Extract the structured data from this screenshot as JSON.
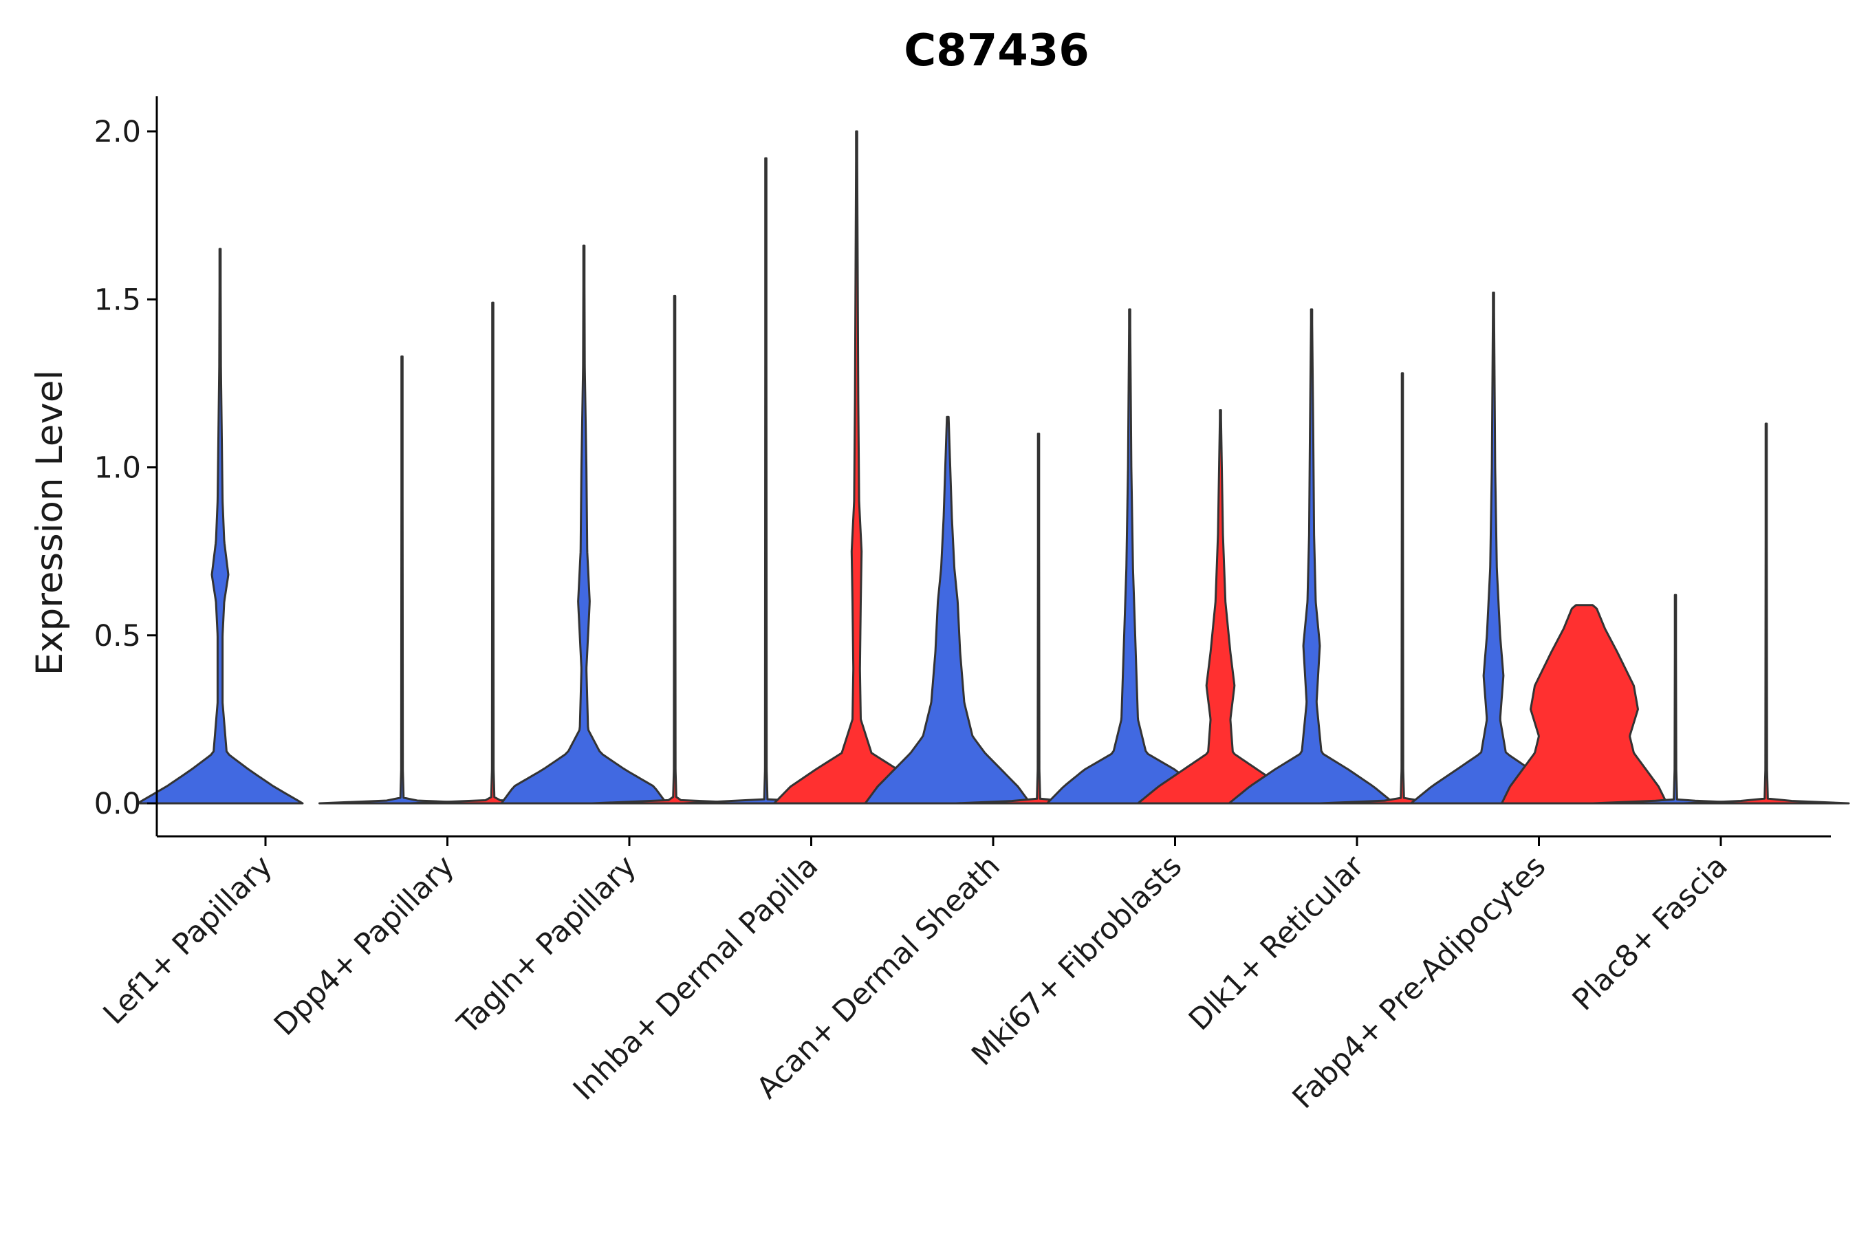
{
  "chart_data": {
    "type": "violin",
    "title": "C87436",
    "xlabel": "",
    "ylabel": "Expression Level",
    "ylim": [
      -0.1,
      2.1
    ],
    "yticks": [
      "0.0",
      "0.5",
      "1.0",
      "1.5",
      "2.0"
    ],
    "ytick_values": [
      0.0,
      0.5,
      1.0,
      1.5,
      2.0
    ],
    "categories": [
      "Lef1+ Papillary",
      "Dpp4+ Papillary",
      "Tagln+ Papillary",
      "Inhba+ Dermal Papilla",
      "Acan+ Dermal Sheath",
      "Mki67+ Fibroblasts",
      "Dlk1+ Reticular",
      "Fabp4+ Pre-Adipocytes",
      "Plac8+ Fascia"
    ],
    "colors": {
      "group1": "#4169E1",
      "group2": "#FF3030",
      "outline": "#333333",
      "axis": "#000000"
    },
    "violins": [
      {
        "category": "Lef1+ Papillary",
        "group": "group1",
        "max": 1.65,
        "density": [
          [
            0,
            1.0
          ],
          [
            0.05,
            0.65
          ],
          [
            0.1,
            0.35
          ],
          [
            0.15,
            0.08
          ],
          [
            0.3,
            0.03
          ],
          [
            0.5,
            0.03
          ],
          [
            0.6,
            0.05
          ],
          [
            0.68,
            0.1
          ],
          [
            0.78,
            0.05
          ],
          [
            0.9,
            0.03
          ],
          [
            1.1,
            0.02
          ],
          [
            1.3,
            0.01
          ],
          [
            1.65,
            0.005
          ]
        ]
      },
      {
        "category": "Dpp4+ Papillary",
        "group": "group1",
        "max": 1.33,
        "density": [
          [
            0,
            1.0
          ],
          [
            0.01,
            0.02
          ],
          [
            0.1,
            0.01
          ],
          [
            1.33,
            0.005
          ]
        ]
      },
      {
        "category": "Dpp4+ Papillary",
        "group": "group2",
        "max": 1.49,
        "density": [
          [
            0,
            1.0
          ],
          [
            0.01,
            0.02
          ],
          [
            0.1,
            0.01
          ],
          [
            1.49,
            0.005
          ]
        ]
      },
      {
        "category": "Tagln+ Papillary",
        "group": "group1",
        "max": 1.66,
        "density": [
          [
            0,
            1.0
          ],
          [
            0.05,
            0.85
          ],
          [
            0.1,
            0.5
          ],
          [
            0.15,
            0.2
          ],
          [
            0.22,
            0.05
          ],
          [
            0.4,
            0.03
          ],
          [
            0.6,
            0.07
          ],
          [
            0.75,
            0.04
          ],
          [
            1.0,
            0.03
          ],
          [
            1.3,
            0.01
          ],
          [
            1.66,
            0.005
          ]
        ]
      },
      {
        "category": "Tagln+ Papillary",
        "group": "group2",
        "max": 1.51,
        "density": [
          [
            0,
            1.0
          ],
          [
            0.01,
            0.02
          ],
          [
            0.1,
            0.01
          ],
          [
            1.51,
            0.005
          ]
        ]
      },
      {
        "category": "Inhba+ Dermal Papilla",
        "group": "group1",
        "max": 1.92,
        "density": [
          [
            0,
            1.0
          ],
          [
            0.01,
            0.02
          ],
          [
            0.1,
            0.01
          ],
          [
            1.92,
            0.005
          ]
        ]
      },
      {
        "category": "Inhba+ Dermal Papilla",
        "group": "group2",
        "max": 2.0,
        "density": [
          [
            0,
            1.0
          ],
          [
            0.05,
            0.8
          ],
          [
            0.1,
            0.5
          ],
          [
            0.15,
            0.18
          ],
          [
            0.25,
            0.05
          ],
          [
            0.4,
            0.04
          ],
          [
            0.6,
            0.05
          ],
          [
            0.75,
            0.06
          ],
          [
            0.9,
            0.03
          ],
          [
            1.2,
            0.02
          ],
          [
            2.0,
            0.005
          ]
        ]
      },
      {
        "category": "Acan+ Dermal Sheath",
        "group": "group1",
        "max": 1.15,
        "density": [
          [
            0,
            1.0
          ],
          [
            0.05,
            0.85
          ],
          [
            0.1,
            0.65
          ],
          [
            0.15,
            0.45
          ],
          [
            0.2,
            0.3
          ],
          [
            0.3,
            0.2
          ],
          [
            0.45,
            0.15
          ],
          [
            0.6,
            0.12
          ],
          [
            0.7,
            0.08
          ],
          [
            0.85,
            0.05
          ],
          [
            1.0,
            0.03
          ],
          [
            1.15,
            0.01
          ]
        ]
      },
      {
        "category": "Acan+ Dermal Sheath",
        "group": "group2",
        "max": 1.1,
        "density": [
          [
            0,
            1.0
          ],
          [
            0.01,
            0.02
          ],
          [
            0.1,
            0.01
          ],
          [
            1.1,
            0.005
          ]
        ]
      },
      {
        "category": "Mki67+ Fibroblasts",
        "group": "group1",
        "max": 1.47,
        "density": [
          [
            0,
            1.0
          ],
          [
            0.05,
            0.8
          ],
          [
            0.1,
            0.55
          ],
          [
            0.15,
            0.2
          ],
          [
            0.25,
            0.1
          ],
          [
            0.4,
            0.08
          ],
          [
            0.55,
            0.06
          ],
          [
            0.7,
            0.04
          ],
          [
            1.0,
            0.02
          ],
          [
            1.47,
            0.005
          ]
        ]
      },
      {
        "category": "Mki67+ Fibroblasts",
        "group": "group2",
        "max": 1.17,
        "density": [
          [
            0,
            1.0
          ],
          [
            0.05,
            0.75
          ],
          [
            0.1,
            0.45
          ],
          [
            0.15,
            0.15
          ],
          [
            0.25,
            0.12
          ],
          [
            0.35,
            0.17
          ],
          [
            0.45,
            0.12
          ],
          [
            0.6,
            0.06
          ],
          [
            0.8,
            0.03
          ],
          [
            1.17,
            0.005
          ]
        ]
      },
      {
        "category": "Dlk1+ Reticular",
        "group": "group1",
        "max": 1.47,
        "density": [
          [
            0,
            1.0
          ],
          [
            0.05,
            0.75
          ],
          [
            0.1,
            0.45
          ],
          [
            0.15,
            0.12
          ],
          [
            0.3,
            0.06
          ],
          [
            0.47,
            0.1
          ],
          [
            0.6,
            0.05
          ],
          [
            0.8,
            0.03
          ],
          [
            1.1,
            0.02
          ],
          [
            1.47,
            0.005
          ]
        ]
      },
      {
        "category": "Dlk1+ Reticular",
        "group": "group2",
        "max": 1.28,
        "density": [
          [
            0,
            1.0
          ],
          [
            0.01,
            0.02
          ],
          [
            0.1,
            0.01
          ],
          [
            1.28,
            0.005
          ]
        ]
      },
      {
        "category": "Fabp4+ Pre-Adipocytes",
        "group": "group1",
        "max": 1.52,
        "density": [
          [
            0,
            1.0
          ],
          [
            0.05,
            0.75
          ],
          [
            0.1,
            0.45
          ],
          [
            0.15,
            0.15
          ],
          [
            0.25,
            0.08
          ],
          [
            0.38,
            0.12
          ],
          [
            0.5,
            0.08
          ],
          [
            0.7,
            0.04
          ],
          [
            1.0,
            0.02
          ],
          [
            1.52,
            0.005
          ]
        ]
      },
      {
        "category": "Fabp4+ Pre-Adipocytes",
        "group": "group2",
        "max": 0.59,
        "density": [
          [
            0,
            1.0
          ],
          [
            0.05,
            0.9
          ],
          [
            0.1,
            0.75
          ],
          [
            0.15,
            0.6
          ],
          [
            0.2,
            0.55
          ],
          [
            0.28,
            0.65
          ],
          [
            0.35,
            0.6
          ],
          [
            0.45,
            0.4
          ],
          [
            0.52,
            0.25
          ],
          [
            0.58,
            0.15
          ],
          [
            0.59,
            0.1
          ]
        ]
      },
      {
        "category": "Plac8+ Fascia",
        "group": "group1",
        "max": 0.62,
        "density": [
          [
            0,
            1.0
          ],
          [
            0.01,
            0.02
          ],
          [
            0.1,
            0.01
          ],
          [
            0.62,
            0.005
          ]
        ]
      },
      {
        "category": "Plac8+ Fascia",
        "group": "group2",
        "max": 1.13,
        "density": [
          [
            0,
            1.0
          ],
          [
            0.01,
            0.02
          ],
          [
            0.1,
            0.01
          ],
          [
            1.13,
            0.005
          ]
        ]
      }
    ]
  }
}
